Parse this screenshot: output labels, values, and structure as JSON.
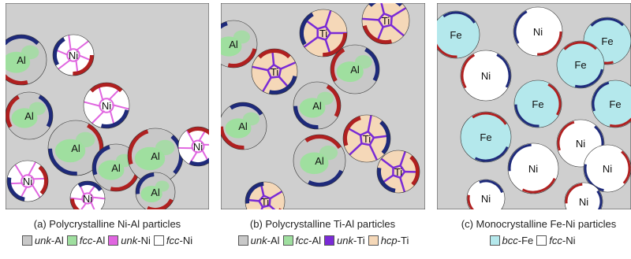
{
  "colors": {
    "background": "#cfcfcf",
    "unk_al": "#c8c8c8",
    "fcc_al": "#9fdf9f",
    "unk_ni": "#e066e0",
    "fcc_ni": "#ffffff",
    "unk_ti": "#7a2ad6",
    "hcp_ti": "#f5d8b8",
    "bcc_fe": "#b4e8ec",
    "rim_red": "#b02020",
    "rim_blue": "#1e2a7a"
  },
  "panels": [
    {
      "caption": "(a) Polycrystalline Ni-Al particles",
      "particles": [
        {
          "label": "Ni",
          "kind": "ni-poly"
        },
        {
          "label": "Al",
          "kind": "al-poly"
        },
        {
          "label": "Al",
          "kind": "al-poly"
        },
        {
          "label": "Ni",
          "kind": "ni-poly"
        },
        {
          "label": "Al",
          "kind": "al-poly"
        },
        {
          "label": "Al",
          "kind": "al-poly"
        },
        {
          "label": "Ni",
          "kind": "ni-poly"
        },
        {
          "label": "Al",
          "kind": "al-poly"
        },
        {
          "label": "Ni",
          "kind": "ni-poly"
        },
        {
          "label": "Ni",
          "kind": "ni-poly"
        },
        {
          "label": "Al",
          "kind": "al-poly"
        }
      ],
      "legend": [
        {
          "italic": "unk",
          "suffix": "-Al",
          "color_key": "unk_al"
        },
        {
          "italic": "fcc",
          "suffix": "-Al",
          "color_key": "fcc_al"
        },
        {
          "italic": "unk",
          "suffix": "-Ni",
          "color_key": "unk_ni"
        },
        {
          "italic": "fcc",
          "suffix": "-Ni",
          "color_key": "fcc_ni"
        }
      ]
    },
    {
      "caption": "(b) Polycrystalline Ti-Al particles",
      "particles": [
        {
          "label": "Ti",
          "kind": "ti-poly"
        },
        {
          "label": "Ti",
          "kind": "ti-poly"
        },
        {
          "label": "Al",
          "kind": "al-poly"
        },
        {
          "label": "Ti",
          "kind": "ti-poly"
        },
        {
          "label": "Al",
          "kind": "al-poly"
        },
        {
          "label": "Al",
          "kind": "al-poly"
        },
        {
          "label": "Al",
          "kind": "al-poly"
        },
        {
          "label": "Ti",
          "kind": "ti-poly"
        },
        {
          "label": "Al",
          "kind": "al-poly"
        },
        {
          "label": "Ti",
          "kind": "ti-poly"
        },
        {
          "label": "Ti",
          "kind": "ti-poly"
        }
      ],
      "legend": [
        {
          "italic": "unk",
          "suffix": "-Al",
          "color_key": "unk_al"
        },
        {
          "italic": "fcc",
          "suffix": "-Al",
          "color_key": "fcc_al"
        },
        {
          "italic": "unk",
          "suffix": "-Ti",
          "color_key": "unk_ti"
        },
        {
          "italic": "hcp",
          "suffix": "-Ti",
          "color_key": "hcp_ti"
        }
      ]
    },
    {
      "caption": "(c) Monocrystalline Fe-Ni particles",
      "particles": [
        {
          "label": "Ni",
          "kind": "ni-mono"
        },
        {
          "label": "Fe",
          "kind": "fe-mono"
        },
        {
          "label": "Ni",
          "kind": "ni-mono"
        },
        {
          "label": "Fe",
          "kind": "fe-mono"
        },
        {
          "label": "Fe",
          "kind": "fe-mono"
        },
        {
          "label": "Fe",
          "kind": "fe-mono"
        },
        {
          "label": "Fe",
          "kind": "fe-mono"
        },
        {
          "label": "Ni",
          "kind": "ni-mono"
        },
        {
          "label": "Fe",
          "kind": "fe-mono"
        },
        {
          "label": "Ni",
          "kind": "ni-mono"
        },
        {
          "label": "Ni",
          "kind": "ni-mono"
        },
        {
          "label": "Ni",
          "kind": "ni-mono"
        },
        {
          "label": "Ni",
          "kind": "ni-mono"
        }
      ],
      "legend": [
        {
          "italic": "bcc",
          "suffix": "-Fe",
          "color_key": "bcc_fe"
        },
        {
          "italic": "fcc",
          "suffix": "-Ni",
          "color_key": "fcc_ni"
        }
      ]
    }
  ]
}
